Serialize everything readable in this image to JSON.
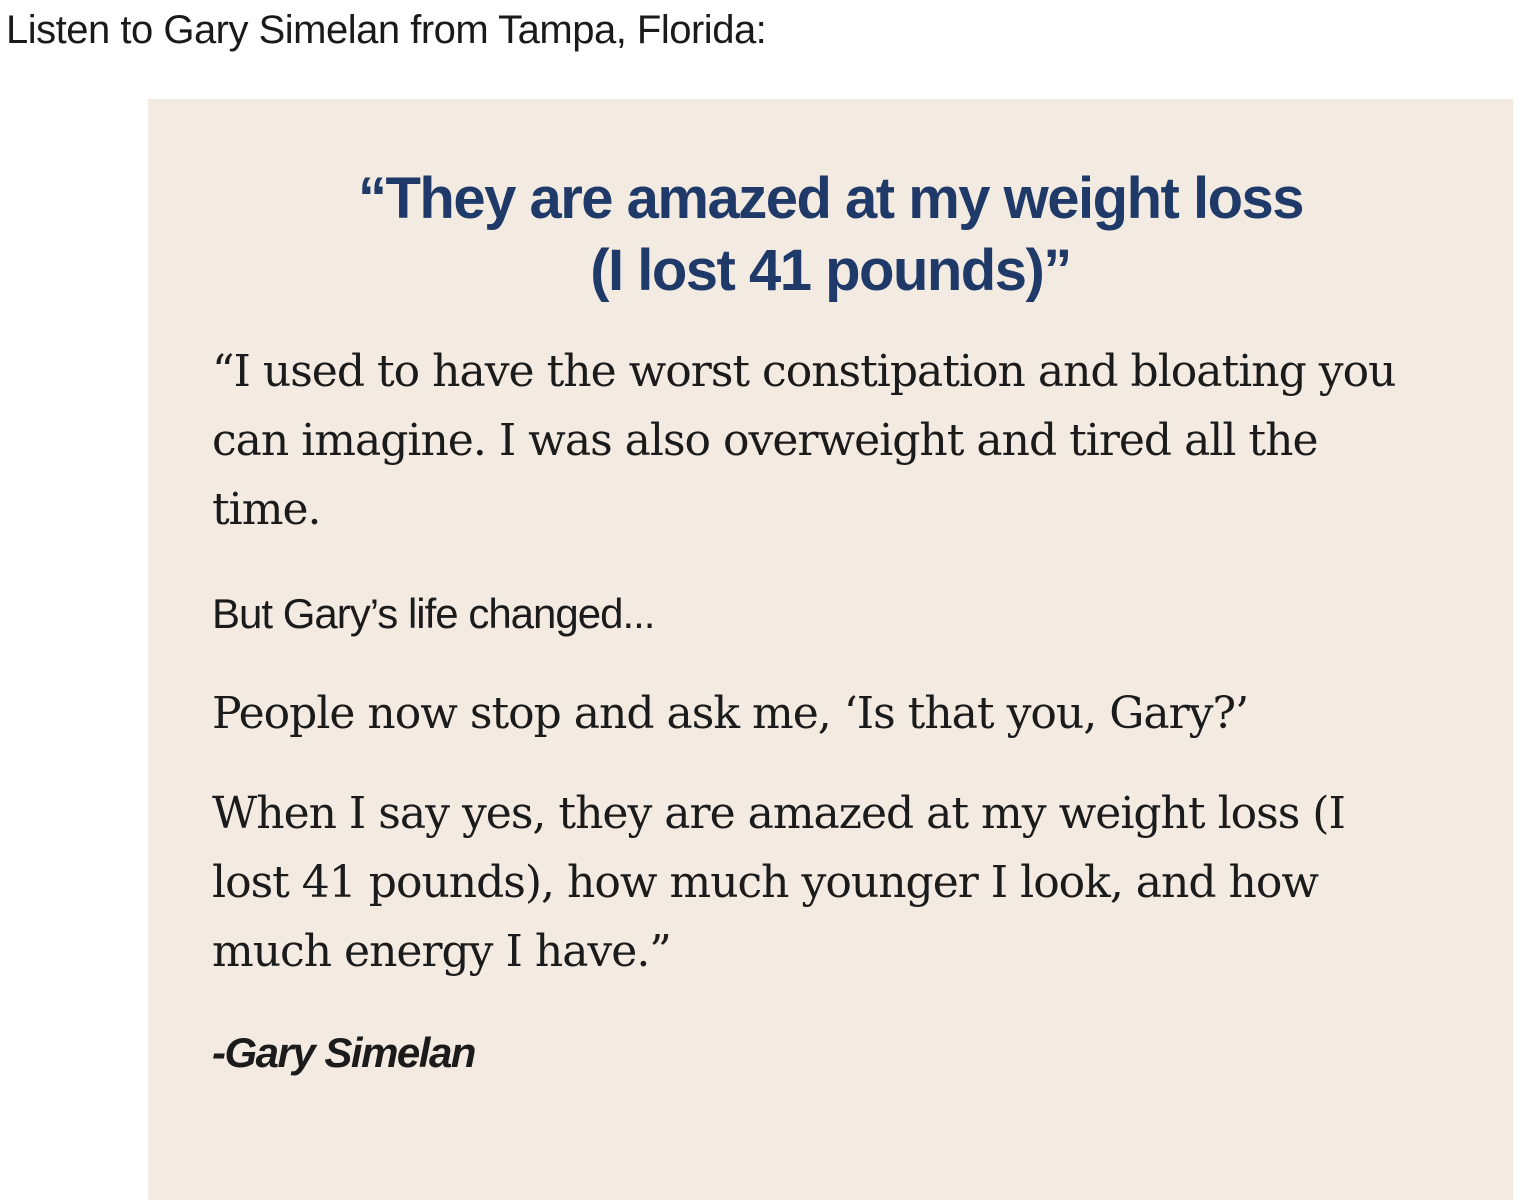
{
  "intro": "Listen to Gary Simelan from Tampa, Florida:",
  "testimonial": {
    "headline": [
      "“They are amazed at my weight loss",
      "(I lost 41 pounds)”"
    ],
    "paragraphs": [
      "“I used to have the worst constipation and bloating you can imagine. I was also overweight and tired all the time.",
      "But Gary’s life changed...",
      "People now stop and ask me, ‘Is that you, Gary?’",
      "When I say yes, they are amazed at my weight loss (I lost 41 pounds), how much younger I look, and how much energy I have.”"
    ],
    "signature": "-Gary Simelan"
  }
}
